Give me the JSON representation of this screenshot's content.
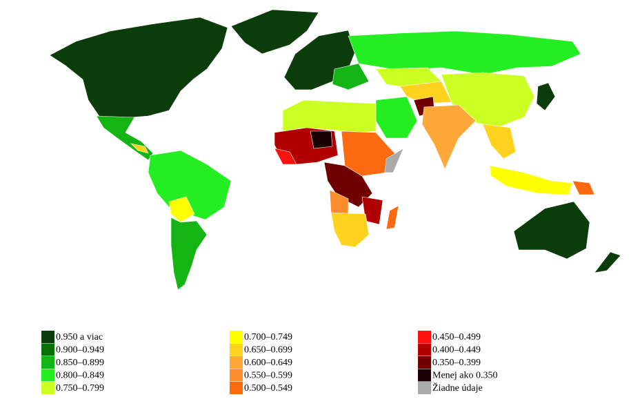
{
  "legend": {
    "items": [
      {
        "label": "0.950 a viac",
        "color": "#0a3d0a"
      },
      {
        "label": "0.900–0.949",
        "color": "#077007"
      },
      {
        "label": "0.850–0.899",
        "color": "#14b414"
      },
      {
        "label": "0.800–0.849",
        "color": "#22ee22"
      },
      {
        "label": "0.750–0.799",
        "color": "#ccff22"
      },
      {
        "label": "0.700–0.749",
        "color": "#ffff00"
      },
      {
        "label": "0.650–0.699",
        "color": "#ffd21e"
      },
      {
        "label": "0.600–0.649",
        "color": "#ffa83a"
      },
      {
        "label": "0.550–0.599",
        "color": "#ff8c2a"
      },
      {
        "label": "0.500–0.549",
        "color": "#ff6a10"
      },
      {
        "label": "0.450–0.499",
        "color": "#ff1010"
      },
      {
        "label": "0.400–0.449",
        "color": "#b00000"
      },
      {
        "label": "0.350–0.399",
        "color": "#700000"
      },
      {
        "label": "Menej ako 0.350",
        "color": "#1a0000"
      },
      {
        "label": "Žiadne údaje",
        "color": "#aaaaaa"
      }
    ]
  }
}
